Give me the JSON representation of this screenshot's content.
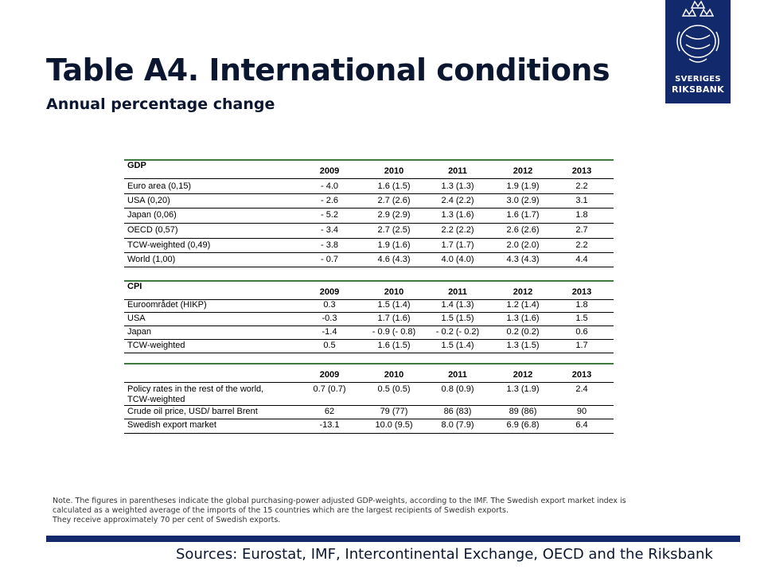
{
  "header": {
    "title": "Table A4. International conditions",
    "subtitle": "Annual percentage change"
  },
  "logo": {
    "line1": "SVERIGES",
    "line2": "RIKSBANK"
  },
  "years": [
    "2009",
    "2010",
    "2011",
    "2012",
    "2013"
  ],
  "gdp": {
    "label": "GDP",
    "rows": [
      {
        "label": "Euro area (0,15)",
        "values": [
          "- 4.0",
          "1.6 (1.5)",
          "1.3 (1.3)",
          "1.9 (1.9)",
          "2.2"
        ]
      },
      {
        "label": "USA (0,20)",
        "values": [
          "- 2.6",
          "2.7 (2.6)",
          "2.4 (2.2)",
          "3.0 (2.9)",
          "3.1"
        ]
      },
      {
        "label": "Japan (0,06)",
        "values": [
          "- 5.2",
          "2.9 (2.9)",
          "1.3 (1.6)",
          "1.6 (1.7)",
          "1.8"
        ]
      },
      {
        "label": "OECD (0,57)",
        "values": [
          "- 3.4",
          "2.7 (2.5)",
          "2.2 (2.2)",
          "2.6 (2.6)",
          "2.7"
        ]
      },
      {
        "label": "TCW-weighted (0,49)",
        "values": [
          "- 3.8",
          "1.9 (1.6)",
          "1.7 (1.7)",
          "2.0 (2.0)",
          "2.2"
        ]
      },
      {
        "label": "World (1,00)",
        "values": [
          "- 0.7",
          "4.6 (4.3)",
          "4.0 (4.0)",
          "4.3 (4.3)",
          "4.4"
        ]
      }
    ]
  },
  "cpi": {
    "label": "CPI",
    "rows": [
      {
        "label": "Euroområdet (HIKP)",
        "values": [
          "0.3",
          "1.5 (1.4)",
          "1.4 (1.3)",
          "1.2 (1.4)",
          "1.8"
        ]
      },
      {
        "label": "USA",
        "values": [
          "-0.3",
          "1.7 (1.6)",
          "1.5 (1.5)",
          "1.3 (1.6)",
          "1.5"
        ]
      },
      {
        "label": "Japan",
        "values": [
          "-1.4",
          "- 0.9 (- 0.8)",
          "- 0.2 (- 0.2)",
          "0.2 (0.2)",
          "0.6"
        ]
      },
      {
        "label": "TCW-weighted",
        "values": [
          "0.5",
          "1.6 (1.5)",
          "1.5 (1.4)",
          "1.3 (1.5)",
          "1.7"
        ]
      }
    ]
  },
  "other": {
    "rows": [
      {
        "label_line1": "Policy rates in the rest of the world,",
        "label_line2": "TCW-weighted",
        "values": [
          "0.7 (0.7)",
          "0.5 (0.5)",
          "0.8 (0.9)",
          "1.3 (1.9)",
          "2.4"
        ]
      },
      {
        "label": "Crude oil price, USD/ barrel Brent",
        "values": [
          "62",
          "79 (77)",
          "86 (83)",
          "89 (86)",
          "90"
        ]
      },
      {
        "label": "Swedish export market",
        "values": [
          "-13.1",
          "10.0 (9.5)",
          "8.0 (7.9)",
          "6.9 (6.8)",
          "6.4"
        ]
      }
    ]
  },
  "footer": {
    "note_line1": "Note. The figures in parentheses indicate the global purchasing-power adjusted GDP-weights, according to the IMF. The Swedish export market index is",
    "note_line2": "calculated as a weighted average of the imports of the 15 countries which are the largest recipients of Swedish exports.",
    "note_line3": "They receive approximately 70 per cent of Swedish exports.",
    "sources": "Sources: Eurostat, IMF, Intercontinental Exchange, OECD and the Riksbank"
  }
}
